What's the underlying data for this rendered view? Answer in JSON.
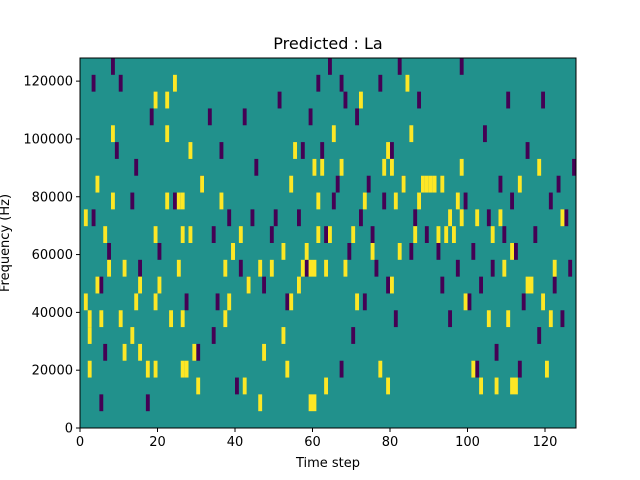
{
  "chart_data": {
    "type": "heatmap",
    "title": "Predicted : La",
    "xlabel": "Time step",
    "ylabel": "Frequency (Hz)",
    "xlim": [
      0,
      128
    ],
    "ylim": [
      0,
      128000
    ],
    "xticks": [
      0,
      20,
      40,
      60,
      80,
      100,
      120
    ],
    "xtick_labels": [
      "0",
      "20",
      "40",
      "60",
      "80",
      "100",
      "120"
    ],
    "yticks": [
      0,
      20000,
      40000,
      60000,
      80000,
      100000,
      120000
    ],
    "ytick_labels": [
      "0",
      "20000",
      "40000",
      "60000",
      "80000",
      "100000",
      "120000"
    ],
    "colormap": "viridis",
    "values_range": [
      -1,
      1
    ],
    "background_value": 0,
    "colors": {
      "low": "#440154",
      "mid": "#21918c",
      "high": "#fde725"
    },
    "legend": "none",
    "grid": false,
    "note_cells": {
      "description_unused": "",
      "high": [
        [
          1,
          7
        ],
        [
          1,
          12
        ],
        [
          2,
          3
        ],
        [
          2,
          5
        ],
        [
          2,
          6
        ],
        [
          4,
          8
        ],
        [
          4,
          14
        ],
        [
          5,
          6
        ],
        [
          6,
          11
        ],
        [
          7,
          9
        ],
        [
          8,
          13
        ],
        [
          8,
          17
        ],
        [
          10,
          6
        ],
        [
          11,
          4
        ],
        [
          11,
          9
        ],
        [
          13,
          5
        ],
        [
          14,
          7
        ],
        [
          15,
          8
        ],
        [
          15,
          4
        ],
        [
          17,
          3
        ],
        [
          19,
          3
        ],
        [
          19,
          7
        ],
        [
          19,
          11
        ],
        [
          19,
          19
        ],
        [
          20,
          8
        ],
        [
          22,
          13
        ],
        [
          22,
          17
        ],
        [
          22,
          19
        ],
        [
          23,
          6
        ],
        [
          24,
          20
        ],
        [
          25,
          9
        ],
        [
          25,
          13
        ],
        [
          26,
          3
        ],
        [
          26,
          6
        ],
        [
          26,
          11
        ],
        [
          26,
          13
        ],
        [
          27,
          3
        ],
        [
          28,
          11
        ],
        [
          28,
          16
        ],
        [
          29,
          4
        ],
        [
          30,
          2
        ],
        [
          31,
          14
        ],
        [
          36,
          13
        ],
        [
          37,
          6
        ],
        [
          37,
          9
        ],
        [
          38,
          7
        ],
        [
          39,
          10
        ],
        [
          39,
          10
        ],
        [
          41,
          11
        ],
        [
          42,
          2
        ],
        [
          43,
          8
        ],
        [
          46,
          1
        ],
        [
          46,
          9
        ],
        [
          47,
          4
        ],
        [
          49,
          9
        ],
        [
          52,
          5
        ],
        [
          52,
          10
        ],
        [
          53,
          3
        ],
        [
          54,
          7
        ],
        [
          54,
          14
        ],
        [
          55,
          16
        ],
        [
          56,
          8
        ],
        [
          57,
          9
        ],
        [
          58,
          10
        ],
        [
          59,
          9
        ],
        [
          59,
          1
        ],
        [
          60,
          1
        ],
        [
          60,
          9
        ],
        [
          60,
          15
        ],
        [
          61,
          11
        ],
        [
          61,
          13
        ],
        [
          62,
          15
        ],
        [
          63,
          2
        ],
        [
          63,
          9
        ],
        [
          64,
          11
        ],
        [
          65,
          17
        ],
        [
          67,
          15
        ],
        [
          68,
          9
        ],
        [
          70,
          11
        ],
        [
          71,
          7
        ],
        [
          72,
          19
        ],
        [
          73,
          13
        ],
        [
          75,
          10
        ],
        [
          77,
          3
        ],
        [
          78,
          15
        ],
        [
          79,
          16
        ],
        [
          79,
          2
        ],
        [
          80,
          8
        ],
        [
          80,
          15
        ],
        [
          81,
          13
        ],
        [
          82,
          10
        ],
        [
          83,
          14
        ],
        [
          84,
          20
        ],
        [
          85,
          17
        ],
        [
          86,
          11
        ],
        [
          87,
          13
        ],
        [
          88,
          14
        ],
        [
          89,
          14
        ],
        [
          90,
          14
        ],
        [
          91,
          14
        ],
        [
          92,
          11
        ],
        [
          93,
          14
        ],
        [
          94,
          11
        ],
        [
          95,
          12
        ],
        [
          96,
          11
        ],
        [
          97,
          13
        ],
        [
          98,
          12
        ],
        [
          98,
          15
        ],
        [
          99,
          7
        ],
        [
          101,
          3
        ],
        [
          102,
          12
        ],
        [
          103,
          2
        ],
        [
          105,
          6
        ],
        [
          106,
          11
        ],
        [
          107,
          2
        ],
        [
          108,
          12
        ],
        [
          109,
          9
        ],
        [
          110,
          6
        ],
        [
          111,
          10
        ],
        [
          111,
          2
        ],
        [
          112,
          2
        ],
        [
          113,
          14
        ],
        [
          115,
          8
        ],
        [
          116,
          8
        ],
        [
          118,
          15
        ],
        [
          119,
          7
        ],
        [
          120,
          3
        ],
        [
          121,
          6
        ],
        [
          122,
          9
        ],
        [
          124,
          12
        ]
      ],
      "low": [
        [
          3,
          20
        ],
        [
          3,
          12
        ],
        [
          5,
          8
        ],
        [
          5,
          1
        ],
        [
          6,
          4
        ],
        [
          7,
          10
        ],
        [
          8,
          21
        ],
        [
          9,
          16
        ],
        [
          10,
          20
        ],
        [
          13,
          13
        ],
        [
          14,
          15
        ],
        [
          15,
          9
        ],
        [
          17,
          1
        ],
        [
          18,
          18
        ],
        [
          20,
          10
        ],
        [
          24,
          13
        ],
        [
          27,
          7
        ],
        [
          30,
          4
        ],
        [
          31,
          14
        ],
        [
          33,
          18
        ],
        [
          34,
          5
        ],
        [
          34,
          11
        ],
        [
          35,
          7
        ],
        [
          36,
          16
        ],
        [
          38,
          12
        ],
        [
          40,
          2
        ],
        [
          41,
          9
        ],
        [
          42,
          18
        ],
        [
          43,
          8
        ],
        [
          44,
          12
        ],
        [
          45,
          15
        ],
        [
          47,
          8
        ],
        [
          49,
          11
        ],
        [
          50,
          12
        ],
        [
          51,
          19
        ],
        [
          53,
          7
        ],
        [
          56,
          12
        ],
        [
          57,
          16
        ],
        [
          58,
          9
        ],
        [
          59,
          18
        ],
        [
          61,
          20
        ],
        [
          62,
          16
        ],
        [
          63,
          11
        ],
        [
          64,
          21
        ],
        [
          65,
          13
        ],
        [
          66,
          14
        ],
        [
          67,
          3
        ],
        [
          67,
          20
        ],
        [
          68,
          19
        ],
        [
          69,
          10
        ],
        [
          70,
          5
        ],
        [
          71,
          18
        ],
        [
          72,
          12
        ],
        [
          73,
          7
        ],
        [
          74,
          14
        ],
        [
          75,
          11
        ],
        [
          76,
          9
        ],
        [
          77,
          20
        ],
        [
          78,
          13
        ],
        [
          79,
          8
        ],
        [
          80,
          16
        ],
        [
          81,
          6
        ],
        [
          82,
          21
        ],
        [
          83,
          14
        ],
        [
          85,
          10
        ],
        [
          86,
          12
        ],
        [
          87,
          19
        ],
        [
          89,
          11
        ],
        [
          92,
          10
        ],
        [
          93,
          8
        ],
        [
          95,
          6
        ],
        [
          97,
          9
        ],
        [
          98,
          21
        ],
        [
          99,
          13
        ],
        [
          100,
          7
        ],
        [
          101,
          10
        ],
        [
          102,
          3
        ],
        [
          103,
          8
        ],
        [
          104,
          17
        ],
        [
          105,
          12
        ],
        [
          106,
          9
        ],
        [
          107,
          4
        ],
        [
          108,
          14
        ],
        [
          109,
          11
        ],
        [
          110,
          19
        ],
        [
          111,
          13
        ],
        [
          112,
          10
        ],
        [
          113,
          3
        ],
        [
          114,
          7
        ],
        [
          115,
          16
        ],
        [
          117,
          11
        ],
        [
          118,
          5
        ],
        [
          119,
          19
        ],
        [
          121,
          13
        ],
        [
          122,
          8
        ],
        [
          123,
          14
        ],
        [
          124,
          6
        ],
        [
          125,
          12
        ],
        [
          126,
          9
        ],
        [
          127,
          15
        ]
      ],
      "y_bins": 22
    }
  }
}
